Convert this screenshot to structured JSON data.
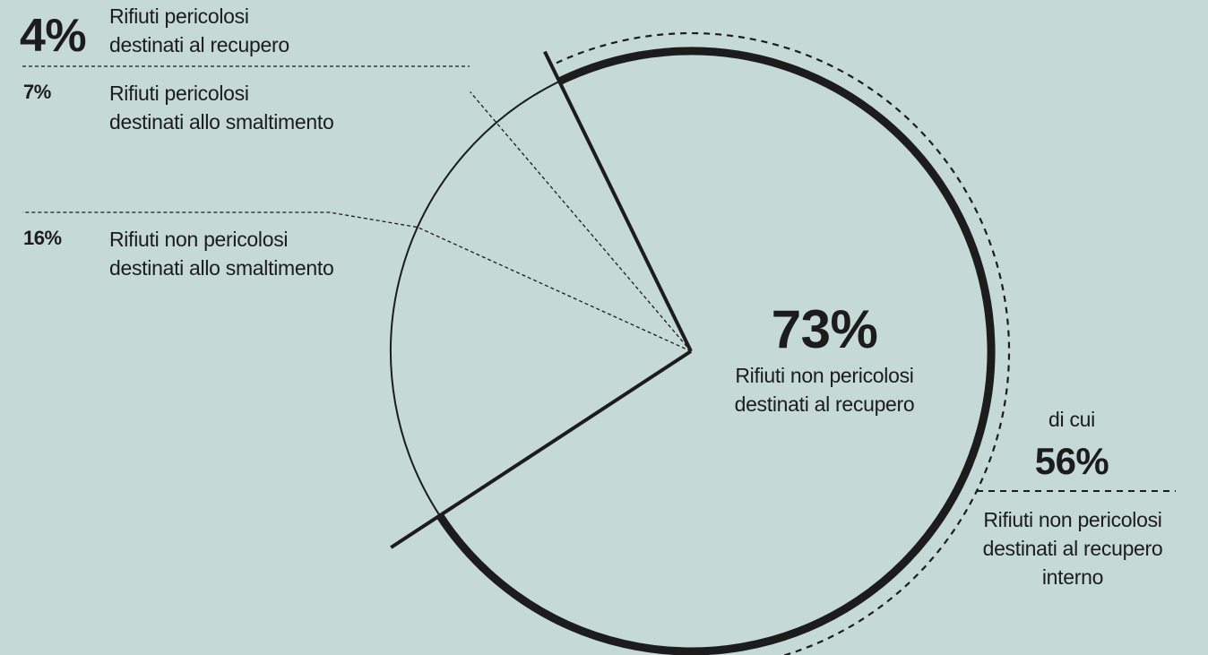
{
  "chart_data": {
    "type": "pie",
    "title": "",
    "colors": {
      "background": "#c5d9d6",
      "ink": "#1c1c1c"
    },
    "slices": [
      {
        "value": 73,
        "percent_label": "73%",
        "label": "Rifiuti non pericolosi destinati al recupero",
        "label_lines": [
          "Rifiuti non pericolosi",
          "destinati al recupero"
        ],
        "emphasis": "thick-outline"
      },
      {
        "value": 4,
        "percent_label": "4%",
        "label": "Rifiuti pericolosi destinati al recupero",
        "label_lines": [
          "Rifiuti pericolosi",
          "destinati al recupero"
        ]
      },
      {
        "value": 7,
        "percent_label": "7%",
        "label": "Rifiuti pericolosi destinati allo smaltimento",
        "label_lines": [
          "Rifiuti pericolosi",
          "destinati allo smaltimento"
        ]
      },
      {
        "value": 16,
        "percent_label": "16%",
        "label": "Rifiuti non pericolosi destinati allo smaltimento",
        "label_lines": [
          "Rifiuti non pericolosi",
          "destinati allo smaltimento"
        ]
      }
    ],
    "sub_segment": {
      "intro": "di cui",
      "value": 56,
      "percent_label": "56%",
      "label_lines": [
        "Rifiuti non pericolosi",
        "destinati al recupero",
        "interno"
      ]
    }
  }
}
